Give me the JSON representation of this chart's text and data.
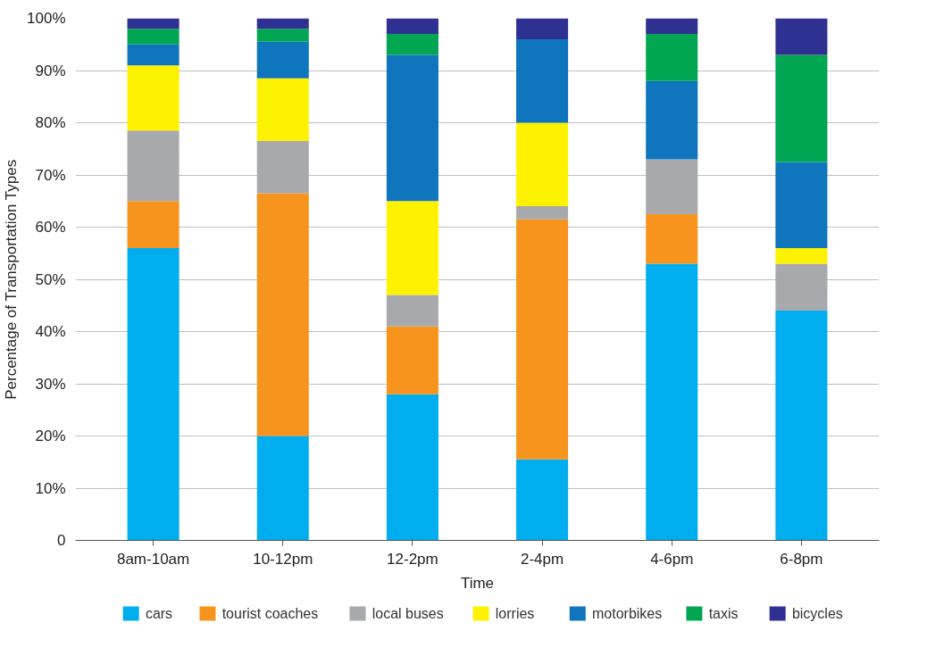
{
  "chart_data": {
    "type": "bar",
    "stacked": true,
    "xlabel": "Time",
    "ylabel": "Percentage of Transportation Types",
    "categories": [
      "8am-10am",
      "10-12pm",
      "12-2pm",
      "2-4pm",
      "4-6pm",
      "6-8pm"
    ],
    "series": [
      {
        "name": "cars",
        "color": "#00aeef",
        "values": [
          56,
          20,
          28,
          15.5,
          53,
          44
        ]
      },
      {
        "name": "tourist coaches",
        "color": "#f7941d",
        "values": [
          9,
          46.5,
          13,
          46,
          9.5,
          0
        ]
      },
      {
        "name": "local buses",
        "color": "#a7a9ac",
        "values": [
          13.5,
          10,
          6,
          2.5,
          10.5,
          9
        ]
      },
      {
        "name": "lorries",
        "color": "#fff200",
        "values": [
          12.5,
          12,
          18,
          16,
          0,
          3
        ]
      },
      {
        "name": "motorbikes",
        "color": "#0f75bc",
        "values": [
          4,
          7,
          28,
          16,
          15,
          16.5
        ]
      },
      {
        "name": "taxis",
        "color": "#00a651",
        "values": [
          3,
          2.5,
          4,
          0,
          9,
          20.5
        ]
      },
      {
        "name": "bicycles",
        "color": "#2e3192",
        "values": [
          2,
          2,
          3,
          4,
          3,
          7
        ]
      }
    ],
    "ylim": [
      0,
      100
    ],
    "yticks": [
      0,
      {
        "value": 10,
        "label": "10%"
      },
      {
        "value": 20,
        "label": "20%"
      },
      {
        "value": 30,
        "label": "30%"
      },
      {
        "value": 40,
        "label": "40%"
      },
      {
        "value": 50,
        "label": "50%"
      },
      {
        "value": 60,
        "label": "60%"
      },
      {
        "value": 70,
        "label": "70%"
      },
      {
        "value": 80,
        "label": "80%"
      },
      {
        "value": 90,
        "label": "90%"
      },
      {
        "value": 100,
        "label": "100%"
      }
    ],
    "grid": "y",
    "legend": "bottom"
  }
}
